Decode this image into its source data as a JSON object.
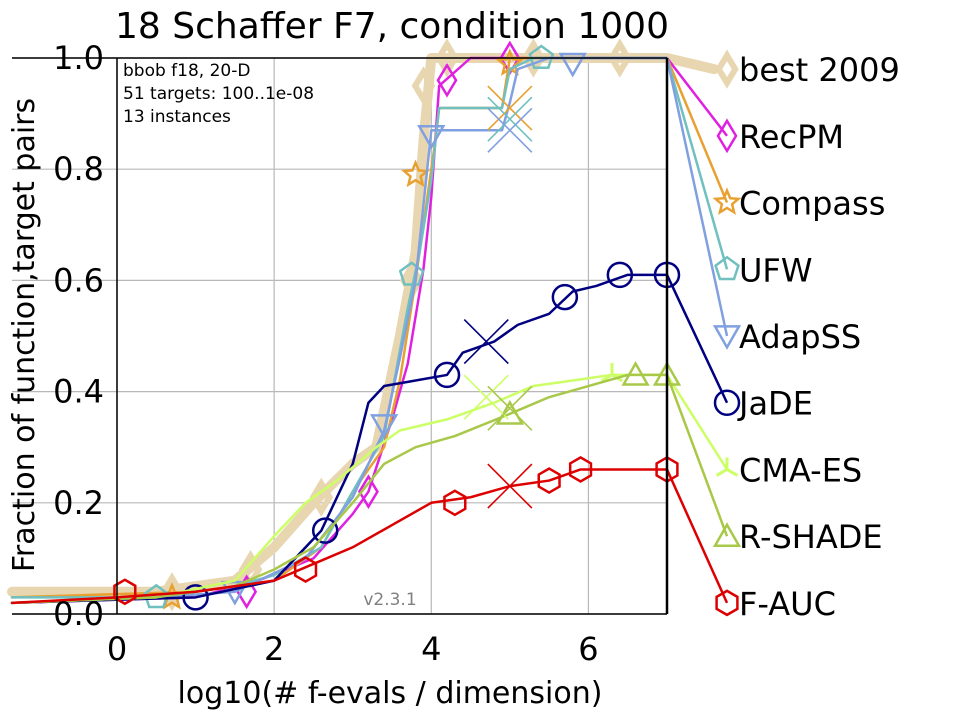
{
  "chart_data": {
    "type": "line",
    "title": "18 Schaffer F7, condition 1000",
    "xlabel": "log10(# f-evals / dimension)",
    "ylabel": "Fraction of function,target pairs",
    "xlim": [
      -1.5,
      7
    ],
    "ylim": [
      0,
      1.0
    ],
    "xticks": [
      0,
      2,
      4,
      6
    ],
    "yticks": [
      0.0,
      0.2,
      0.4,
      0.6,
      0.8,
      1.0
    ],
    "xtick_labels": [
      "0",
      "2",
      "4",
      "6"
    ],
    "ytick_labels": [
      "0.0",
      "0.2",
      "0.4",
      "0.6",
      "0.8",
      "1.0"
    ],
    "grid": true,
    "max_evals_line_x": 7,
    "info_lines": [
      "bbob f18, 20-D",
      "51 targets: 100..1e-08",
      "13 instances"
    ],
    "version": "v2.3.1",
    "series": [
      {
        "name": "best 2009",
        "color": "#e8d6b0",
        "marker": "diamond",
        "width": 10,
        "points": [
          [
            -1.5,
            0.04
          ],
          [
            0.5,
            0.04
          ],
          [
            1.5,
            0.06
          ],
          [
            2,
            0.12
          ],
          [
            2.5,
            0.2
          ],
          [
            3,
            0.27
          ],
          [
            3.3,
            0.3
          ],
          [
            3.6,
            0.5
          ],
          [
            3.8,
            0.65
          ],
          [
            3.9,
            0.85
          ],
          [
            4,
            1.0
          ],
          [
            7,
            1.0
          ],
          [
            7.6,
            0.98
          ]
        ],
        "markers": [
          [
            0.7,
            0.04
          ],
          [
            1.7,
            0.08
          ],
          [
            2.6,
            0.21
          ],
          [
            3.75,
            0.6
          ],
          [
            3.9,
            0.95
          ],
          [
            4.2,
            1.0
          ],
          [
            5.3,
            1.0
          ],
          [
            6.4,
            1.0
          ]
        ],
        "end_y": 0.98
      },
      {
        "name": "RecPM",
        "color": "#e020e0",
        "marker": "diamond",
        "width": 2.5,
        "points": [
          [
            -1.5,
            0.02
          ],
          [
            1,
            0.03
          ],
          [
            1.8,
            0.06
          ],
          [
            2.5,
            0.1
          ],
          [
            3,
            0.18
          ],
          [
            3.2,
            0.22
          ],
          [
            3.5,
            0.35
          ],
          [
            3.7,
            0.45
          ],
          [
            3.9,
            0.62
          ],
          [
            4.0,
            0.75
          ],
          [
            4.1,
            0.95
          ],
          [
            4.5,
            1.0
          ],
          [
            7,
            1.0
          ]
        ],
        "markers": [
          [
            1.65,
            0.04
          ],
          [
            3.2,
            0.22
          ],
          [
            4.2,
            0.96
          ],
          [
            5.0,
            1.0
          ]
        ],
        "end_y": 0.86
      },
      {
        "name": "Compass",
        "color": "#e8a030",
        "marker": "star",
        "width": 2.5,
        "points": [
          [
            -1.5,
            0.03
          ],
          [
            1,
            0.04
          ],
          [
            2,
            0.06
          ],
          [
            2.6,
            0.12
          ],
          [
            3,
            0.22
          ],
          [
            3.4,
            0.3
          ],
          [
            3.6,
            0.42
          ],
          [
            3.8,
            0.6
          ],
          [
            3.9,
            0.7
          ],
          [
            4.05,
            0.85
          ],
          [
            4.1,
            0.91
          ],
          [
            4.9,
            0.91
          ],
          [
            5.0,
            1.0
          ],
          [
            7,
            1.0
          ]
        ],
        "markers": [
          [
            0.7,
            0.03
          ],
          [
            3.8,
            0.79
          ],
          [
            5.0,
            0.99
          ]
        ],
        "end_y": 0.74
      },
      {
        "name": "UFW",
        "color": "#70c0c0",
        "marker": "pentagon",
        "width": 2.5,
        "points": [
          [
            -1.5,
            0.03
          ],
          [
            0.5,
            0.03
          ],
          [
            1.5,
            0.05
          ],
          [
            2,
            0.07
          ],
          [
            2.6,
            0.12
          ],
          [
            3.0,
            0.22
          ],
          [
            3.4,
            0.32
          ],
          [
            3.7,
            0.55
          ],
          [
            3.85,
            0.65
          ],
          [
            4.0,
            0.78
          ],
          [
            4.1,
            0.91
          ],
          [
            4.9,
            0.91
          ],
          [
            5.0,
            0.98
          ],
          [
            5.3,
            1.0
          ],
          [
            7,
            1.0
          ]
        ],
        "markers": [
          [
            0.5,
            0.03
          ],
          [
            3.75,
            0.61
          ],
          [
            5.4,
            1.0
          ]
        ],
        "end_y": 0.62
      },
      {
        "name": "AdapSS",
        "color": "#80a0e0",
        "marker": "triangle-down",
        "width": 2.5,
        "points": [
          [
            -1.5,
            0.02
          ],
          [
            0.5,
            0.03
          ],
          [
            1.5,
            0.04
          ],
          [
            2.4,
            0.1
          ],
          [
            3,
            0.21
          ],
          [
            3.4,
            0.33
          ],
          [
            3.6,
            0.46
          ],
          [
            3.8,
            0.6
          ],
          [
            4.0,
            0.87
          ],
          [
            4.9,
            0.87
          ],
          [
            5.0,
            0.92
          ],
          [
            5.1,
            0.98
          ],
          [
            5.5,
            1.0
          ],
          [
            7,
            1.0
          ]
        ],
        "markers": [
          [
            1.5,
            0.04
          ],
          [
            3.4,
            0.34
          ],
          [
            4.0,
            0.86
          ],
          [
            5.8,
            0.99
          ]
        ],
        "end_y": 0.5
      },
      {
        "name": "JaDE",
        "color": "#000080",
        "marker": "circle",
        "width": 2.5,
        "points": [
          [
            -1.5,
            0.02
          ],
          [
            1,
            0.03
          ],
          [
            2,
            0.06
          ],
          [
            2.6,
            0.15
          ],
          [
            3.0,
            0.27
          ],
          [
            3.2,
            0.38
          ],
          [
            3.4,
            0.41
          ],
          [
            3.8,
            0.42
          ],
          [
            4.2,
            0.43
          ],
          [
            4.4,
            0.47
          ],
          [
            4.8,
            0.49
          ],
          [
            5.1,
            0.52
          ],
          [
            5.5,
            0.54
          ],
          [
            5.8,
            0.58
          ],
          [
            6.1,
            0.59
          ],
          [
            6.5,
            0.61
          ],
          [
            7,
            0.61
          ]
        ],
        "markers": [
          [
            1.0,
            0.03
          ],
          [
            2.65,
            0.15
          ],
          [
            4.2,
            0.43
          ],
          [
            5.7,
            0.57
          ],
          [
            6.4,
            0.61
          ],
          [
            7,
            0.61
          ]
        ],
        "end_y": 0.38
      },
      {
        "name": "CMA-ES",
        "color": "#ccff66",
        "marker": "tri",
        "width": 2.5,
        "points": [
          [
            -1.5,
            0.02
          ],
          [
            0.5,
            0.03
          ],
          [
            1.5,
            0.06
          ],
          [
            2,
            0.14
          ],
          [
            2.4,
            0.2
          ],
          [
            2.8,
            0.24
          ],
          [
            3.3,
            0.3
          ],
          [
            3.6,
            0.33
          ],
          [
            4.2,
            0.35
          ],
          [
            4.8,
            0.38
          ],
          [
            5.3,
            0.41
          ],
          [
            5.8,
            0.42
          ],
          [
            6.3,
            0.43
          ],
          [
            7,
            0.43
          ]
        ],
        "markers": [
          [
            6.3,
            0.43
          ]
        ],
        "end_y": 0.26
      },
      {
        "name": "R-SHADE",
        "color": "#a8c848",
        "marker": "triangle-up",
        "width": 2.5,
        "points": [
          [
            -1.5,
            0.02
          ],
          [
            0.5,
            0.03
          ],
          [
            1.5,
            0.05
          ],
          [
            2,
            0.08
          ],
          [
            2.5,
            0.12
          ],
          [
            3,
            0.2
          ],
          [
            3.4,
            0.27
          ],
          [
            3.8,
            0.3
          ],
          [
            4.3,
            0.32
          ],
          [
            5.0,
            0.36
          ],
          [
            5.5,
            0.39
          ],
          [
            6.0,
            0.41
          ],
          [
            6.5,
            0.43
          ],
          [
            7,
            0.43
          ]
        ],
        "markers": [
          [
            5.0,
            0.36
          ],
          [
            6.6,
            0.43
          ],
          [
            7,
            0.43
          ]
        ],
        "end_y": 0.14
      },
      {
        "name": "F-AUC",
        "color": "#dd0000",
        "marker": "hexagon",
        "width": 2.5,
        "points": [
          [
            -1.5,
            0.02
          ],
          [
            0,
            0.03
          ],
          [
            1,
            0.04
          ],
          [
            2,
            0.06
          ],
          [
            2.5,
            0.09
          ],
          [
            3,
            0.12
          ],
          [
            3.5,
            0.16
          ],
          [
            4,
            0.2
          ],
          [
            4.5,
            0.21
          ],
          [
            5,
            0.23
          ],
          [
            5.5,
            0.24
          ],
          [
            5.9,
            0.26
          ],
          [
            7,
            0.26
          ]
        ],
        "markers": [
          [
            0.1,
            0.04
          ],
          [
            2.4,
            0.08
          ],
          [
            4.3,
            0.2
          ],
          [
            5.5,
            0.24
          ],
          [
            5.9,
            0.26
          ],
          [
            7,
            0.26
          ]
        ],
        "end_y": 0.02
      }
    ],
    "crosses": [
      {
        "x": 4.7,
        "y": 0.49,
        "color": "#000080"
      },
      {
        "x": 4.7,
        "y": 0.39,
        "color": "#ccff66"
      },
      {
        "x": 5.0,
        "y": 0.37,
        "color": "#a8c848"
      },
      {
        "x": 5.0,
        "y": 0.23,
        "color": "#dd0000"
      },
      {
        "x": 5.0,
        "y": 0.91,
        "color": "#e8a030"
      },
      {
        "x": 5.0,
        "y": 0.89,
        "color": "#70c0c0"
      },
      {
        "x": 5.0,
        "y": 0.87,
        "color": "#80a0e0"
      }
    ]
  }
}
